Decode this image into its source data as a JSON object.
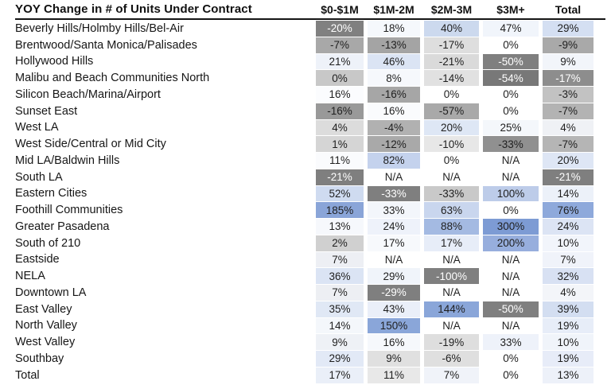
{
  "title": "YOY Change in # of Units Under Contract",
  "table": {
    "columns": [
      "$0-$1M",
      "$1M-2M",
      "$2M-3M",
      "$3M+",
      "Total"
    ],
    "rows": [
      {
        "label": "Beverly Hills/Holmby Hills/Bel-Air",
        "cells": [
          {
            "v": "-20%",
            "bg": "#808080",
            "fg": "#ffffff"
          },
          {
            "v": "18%",
            "bg": "#f5f8fc"
          },
          {
            "v": "40%",
            "bg": "#ccd9ee"
          },
          {
            "v": "47%",
            "bg": "#f1f5fb"
          },
          {
            "v": "29%",
            "bg": "#d4dff2"
          }
        ]
      },
      {
        "label": "Brentwood/Santa Monica/Palisades",
        "cells": [
          {
            "v": "-7%",
            "bg": "#a8a8a8"
          },
          {
            "v": "-13%",
            "bg": "#a4a4a4"
          },
          {
            "v": "-17%",
            "bg": "#dedede"
          },
          {
            "v": "0%",
            "bg": "#ffffff"
          },
          {
            "v": "-9%",
            "bg": "#a9a9a9"
          }
        ]
      },
      {
        "label": "Hollywood Hills",
        "cells": [
          {
            "v": "21%",
            "bg": "#eef2f9"
          },
          {
            "v": "46%",
            "bg": "#dbe4f4"
          },
          {
            "v": "-21%",
            "bg": "#dadada"
          },
          {
            "v": "-50%",
            "bg": "#7f7f7f",
            "fg": "#ffffff"
          },
          {
            "v": "9%",
            "bg": "#f2f5fa"
          }
        ]
      },
      {
        "label": "Malibu and Beach Communities North",
        "cells": [
          {
            "v": "0%",
            "bg": "#c8c8c8"
          },
          {
            "v": "8%",
            "bg": "#f6f8fc"
          },
          {
            "v": "-14%",
            "bg": "#e1e1e1"
          },
          {
            "v": "-54%",
            "bg": "#787878",
            "fg": "#ffffff"
          },
          {
            "v": "-17%",
            "bg": "#8d8d8d",
            "fg": "#ffffff"
          }
        ]
      },
      {
        "label": "Silicon Beach/Marina/Airport",
        "cells": [
          {
            "v": "16%",
            "bg": "#fbfcfe"
          },
          {
            "v": "-16%",
            "bg": "#a6a6a6"
          },
          {
            "v": "0%",
            "bg": "#ffffff"
          },
          {
            "v": "0%",
            "bg": "#ffffff"
          },
          {
            "v": "-3%",
            "bg": "#c2c2c2"
          }
        ]
      },
      {
        "label": "Sunset East",
        "cells": [
          {
            "v": "-16%",
            "bg": "#999999"
          },
          {
            "v": "16%",
            "bg": "#fafbfd"
          },
          {
            "v": "-57%",
            "bg": "#a9a9a9"
          },
          {
            "v": "0%",
            "bg": "#ffffff"
          },
          {
            "v": "-7%",
            "bg": "#b3b3b3"
          }
        ]
      },
      {
        "label": "West LA",
        "cells": [
          {
            "v": "4%",
            "bg": "#dcdcdc"
          },
          {
            "v": "-4%",
            "bg": "#b1b1b1"
          },
          {
            "v": "20%",
            "bg": "#dee7f5"
          },
          {
            "v": "25%",
            "bg": "#f4f7fb"
          },
          {
            "v": "4%",
            "bg": "#eff1f5"
          }
        ]
      },
      {
        "label": "West Side/Central or Mid City",
        "cells": [
          {
            "v": "1%",
            "bg": "#d5d5d5"
          },
          {
            "v": "-12%",
            "bg": "#a9a9a9"
          },
          {
            "v": "-10%",
            "bg": "#e7e7e7"
          },
          {
            "v": "-33%",
            "bg": "#909090"
          },
          {
            "v": "-7%",
            "bg": "#b5b5b5"
          }
        ]
      },
      {
        "label": "Mid LA/Baldwin Hills",
        "cells": [
          {
            "v": "11%",
            "bg": "#fafbfd"
          },
          {
            "v": "82%",
            "bg": "#c4d2ed"
          },
          {
            "v": "0%",
            "bg": "#ffffff"
          },
          {
            "v": "N/A",
            "bg": "#ffffff"
          },
          {
            "v": "20%",
            "bg": "#dee6f5"
          }
        ]
      },
      {
        "label": "South LA",
        "cells": [
          {
            "v": "-21%",
            "bg": "#7f7f7f",
            "fg": "#ffffff"
          },
          {
            "v": "N/A",
            "bg": "#ffffff"
          },
          {
            "v": "N/A",
            "bg": "#ffffff"
          },
          {
            "v": "N/A",
            "bg": "#ffffff"
          },
          {
            "v": "-21%",
            "bg": "#7f7f7f",
            "fg": "#ffffff"
          }
        ]
      },
      {
        "label": "Eastern Cities",
        "cells": [
          {
            "v": "52%",
            "bg": "#cfdbf0"
          },
          {
            "v": "-33%",
            "bg": "#7f7f7f",
            "fg": "#ffffff"
          },
          {
            "v": "-33%",
            "bg": "#c9c9c9"
          },
          {
            "v": "100%",
            "bg": "#bdcce9"
          },
          {
            "v": "14%",
            "bg": "#ecf1f9"
          }
        ]
      },
      {
        "label": "Foothill Communities",
        "cells": [
          {
            "v": "185%",
            "bg": "#8aa5d8"
          },
          {
            "v": "33%",
            "bg": "#f3f6fb"
          },
          {
            "v": "63%",
            "bg": "#c9d6ee"
          },
          {
            "v": "0%",
            "bg": "#ffffff"
          },
          {
            "v": "76%",
            "bg": "#8ea9db"
          }
        ]
      },
      {
        "label": "Greater Pasadena",
        "cells": [
          {
            "v": "13%",
            "bg": "#f6f8fc"
          },
          {
            "v": "24%",
            "bg": "#eef2fa"
          },
          {
            "v": "88%",
            "bg": "#a4bae2"
          },
          {
            "v": "300%",
            "bg": "#7d9bd4"
          },
          {
            "v": "24%",
            "bg": "#dce4f4"
          }
        ]
      },
      {
        "label": "South of 210",
        "cells": [
          {
            "v": "2%",
            "bg": "#d0d0d0"
          },
          {
            "v": "17%",
            "bg": "#f7f9fc"
          },
          {
            "v": "17%",
            "bg": "#e7edf8"
          },
          {
            "v": "200%",
            "bg": "#97aedd"
          },
          {
            "v": "10%",
            "bg": "#f2f5fb"
          }
        ]
      },
      {
        "label": "Eastside",
        "cells": [
          {
            "v": "7%",
            "bg": "#edeff4"
          },
          {
            "v": "N/A",
            "bg": "#ffffff"
          },
          {
            "v": "N/A",
            "bg": "#ffffff"
          },
          {
            "v": "N/A",
            "bg": "#ffffff"
          },
          {
            "v": "7%",
            "bg": "#f0f3fa"
          }
        ]
      },
      {
        "label": "NELA",
        "cells": [
          {
            "v": "36%",
            "bg": "#dbe4f4"
          },
          {
            "v": "29%",
            "bg": "#f0f4fa"
          },
          {
            "v": "-100%",
            "bg": "#7f7f7f",
            "fg": "#ffffff"
          },
          {
            "v": "N/A",
            "bg": "#ffffff"
          },
          {
            "v": "32%",
            "bg": "#d8e1f3"
          }
        ]
      },
      {
        "label": "Downtown LA",
        "cells": [
          {
            "v": "7%",
            "bg": "#edeff3"
          },
          {
            "v": "-29%",
            "bg": "#7f7f7f",
            "fg": "#ffffff"
          },
          {
            "v": "N/A",
            "bg": "#ffffff"
          },
          {
            "v": "N/A",
            "bg": "#ffffff"
          },
          {
            "v": "4%",
            "bg": "#f3f5f9"
          }
        ]
      },
      {
        "label": "East Valley",
        "cells": [
          {
            "v": "35%",
            "bg": "#e0e8f5"
          },
          {
            "v": "43%",
            "bg": "#eaeff9"
          },
          {
            "v": "144%",
            "bg": "#8aa6d9"
          },
          {
            "v": "-50%",
            "bg": "#7f7f7f",
            "fg": "#ffffff"
          },
          {
            "v": "39%",
            "bg": "#d3def1"
          }
        ]
      },
      {
        "label": "North Valley",
        "cells": [
          {
            "v": "14%",
            "bg": "#f4f7fb"
          },
          {
            "v": "150%",
            "bg": "#8aa6d9"
          },
          {
            "v": "N/A",
            "bg": "#ffffff"
          },
          {
            "v": "N/A",
            "bg": "#ffffff"
          },
          {
            "v": "19%",
            "bg": "#e7edf8"
          }
        ]
      },
      {
        "label": "West Valley",
        "cells": [
          {
            "v": "9%",
            "bg": "#eef1f6"
          },
          {
            "v": "16%",
            "bg": "#f6f8fc"
          },
          {
            "v": "-19%",
            "bg": "#dedede"
          },
          {
            "v": "33%",
            "bg": "#eef2fa"
          },
          {
            "v": "10%",
            "bg": "#f0f4fa"
          }
        ]
      },
      {
        "label": "Southbay",
        "cells": [
          {
            "v": "29%",
            "bg": "#e2e9f6"
          },
          {
            "v": "9%",
            "bg": "#e0e0e0"
          },
          {
            "v": "-6%",
            "bg": "#dfdfdf"
          },
          {
            "v": "0%",
            "bg": "#ffffff"
          },
          {
            "v": "19%",
            "bg": "#e7ecf8"
          }
        ]
      },
      {
        "label": "Total",
        "cells": [
          {
            "v": "17%",
            "bg": "#eaeff8"
          },
          {
            "v": "11%",
            "bg": "#e8e8e8"
          },
          {
            "v": "7%",
            "bg": "#f0f3f9"
          },
          {
            "v": "0%",
            "bg": "#ffffff"
          },
          {
            "v": "13%",
            "bg": "#edf1f9"
          }
        ]
      }
    ]
  },
  "colors": {
    "header_rule": "#151515",
    "text": "#1f1f1f",
    "text_inverse": "#ffffff",
    "negative_strong": "#7f7f7f",
    "positive_strong": "#7d9bd4"
  },
  "chart_data": {
    "type": "heatmap",
    "title": "YOY Change in # of Units Under Contract",
    "columns": [
      "$0-$1M",
      "$1M-2M",
      "$2M-3M",
      "$3M+",
      "Total"
    ],
    "rows": [
      "Beverly Hills/Holmby Hills/Bel-Air",
      "Brentwood/Santa Monica/Palisades",
      "Hollywood Hills",
      "Malibu and Beach Communities North",
      "Silicon Beach/Marina/Airport",
      "Sunset East",
      "West LA",
      "West Side/Central or Mid City",
      "Mid LA/Baldwin Hills",
      "South LA",
      "Eastern Cities",
      "Foothill Communities",
      "Greater Pasadena",
      "South of 210",
      "Eastside",
      "NELA",
      "Downtown LA",
      "East Valley",
      "North Valley",
      "West Valley",
      "Southbay",
      "Total"
    ],
    "values_pct": [
      [
        -20,
        18,
        40,
        47,
        29
      ],
      [
        -7,
        -13,
        -17,
        0,
        -9
      ],
      [
        21,
        46,
        -21,
        -50,
        9
      ],
      [
        0,
        8,
        -14,
        -54,
        -17
      ],
      [
        16,
        -16,
        0,
        0,
        -3
      ],
      [
        -16,
        16,
        -57,
        0,
        -7
      ],
      [
        4,
        -4,
        20,
        25,
        4
      ],
      [
        1,
        -12,
        -10,
        -33,
        -7
      ],
      [
        11,
        82,
        0,
        null,
        20
      ],
      [
        -21,
        null,
        null,
        null,
        -21
      ],
      [
        52,
        -33,
        -33,
        100,
        14
      ],
      [
        185,
        33,
        63,
        0,
        76
      ],
      [
        13,
        24,
        88,
        300,
        24
      ],
      [
        2,
        17,
        17,
        200,
        10
      ],
      [
        7,
        null,
        null,
        null,
        7
      ],
      [
        36,
        29,
        -100,
        null,
        32
      ],
      [
        7,
        -29,
        null,
        null,
        4
      ],
      [
        35,
        43,
        144,
        -50,
        39
      ],
      [
        14,
        150,
        null,
        null,
        19
      ],
      [
        9,
        16,
        -19,
        33,
        10
      ],
      [
        29,
        9,
        -6,
        0,
        19
      ],
      [
        17,
        11,
        7,
        0,
        13
      ]
    ],
    "na_label": "N/A",
    "color_encoding": "gray shades = negative YOY change (darker = more negative, white text on darkest), blue shades = positive YOY change (darker = larger), white = near zero / N/A; scaling applied per column",
    "legend_position": "none",
    "grid": false
  }
}
